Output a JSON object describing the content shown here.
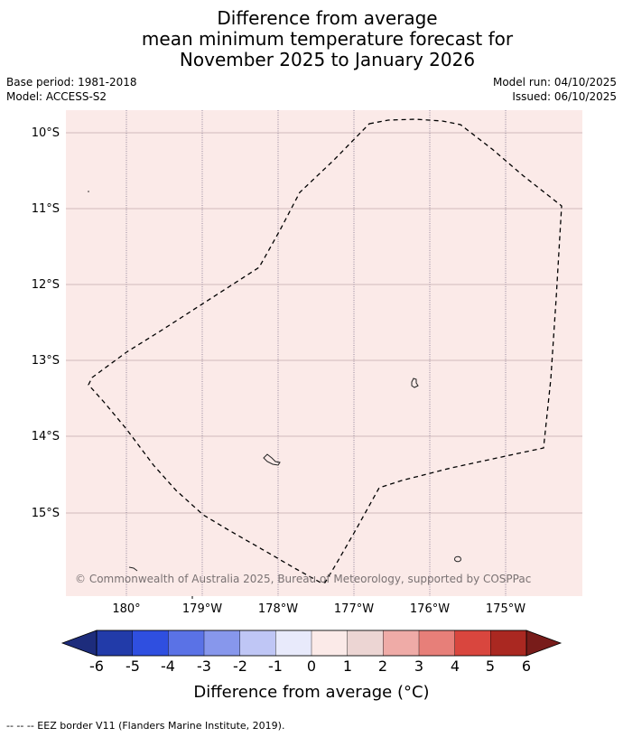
{
  "title": {
    "line1": "Difference from average",
    "line2": "mean minimum temperature forecast for",
    "line3": "November 2025 to January 2026"
  },
  "meta": {
    "base_period": "Base period: 1981-2018",
    "model": "Model: ACCESS-S2",
    "model_run": "Model run: 04/10/2025",
    "issued": "Issued: 06/10/2025"
  },
  "map": {
    "fill_color": "#fbeae8",
    "lat_labels": [
      "10°S",
      "11°S",
      "12°S",
      "13°S",
      "14°S",
      "15°S"
    ],
    "lon_labels": [
      "180°",
      "179°W",
      "178°W",
      "177°W",
      "176°W",
      "175°W"
    ],
    "copyright": "© Commonwealth of Australia 2025, Bureau of Meteorology, supported by COSPPac"
  },
  "colorbar": {
    "ticks": [
      "-6",
      "-5",
      "-4",
      "-3",
      "-2",
      "-1",
      "0",
      "1",
      "2",
      "3",
      "4",
      "5",
      "6"
    ],
    "colors": [
      "#223ba9",
      "#2f4fe0",
      "#5a72e6",
      "#8797ec",
      "#bfc6f5",
      "#e8eafb",
      "#fbeae8",
      "#ecd5d3",
      "#efaba7",
      "#e77f79",
      "#d9463e",
      "#aa2821"
    ],
    "low_color": "#1d2c7c",
    "high_color": "#781c1a",
    "label": "Difference from average (°C)"
  },
  "footer": {
    "legend": "--  --  -- EEZ border V11 (Flanders Marine Institute, 2019)."
  }
}
